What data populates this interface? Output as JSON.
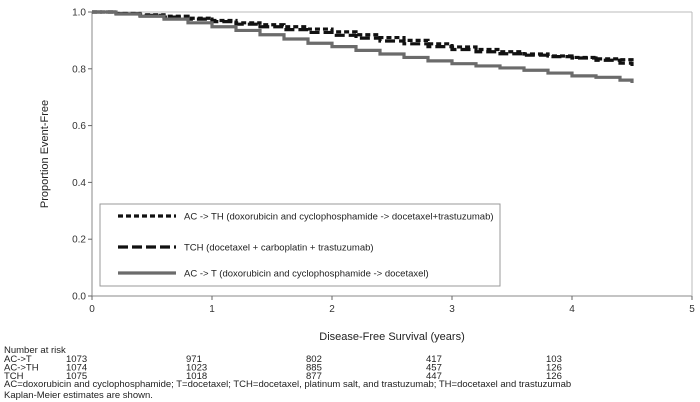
{
  "chart_data": {
    "type": "line",
    "subtype": "kaplan-meier step curves",
    "xlabel": "Disease-Free Survival (years)",
    "ylabel": "Proportion Event-Free",
    "xlim": [
      0,
      5
    ],
    "ylim": [
      0,
      1
    ],
    "x_ticks": [
      "0",
      "1",
      "2",
      "3",
      "4",
      "5"
    ],
    "y_ticks": [
      "0.0",
      "0.2",
      "0.4",
      "0.6",
      "0.8",
      "1.0"
    ],
    "grid": false,
    "legend_position": "lower-left",
    "series": [
      {
        "name": "AC -> TH (doxorubicin and cyclophosphamide -> docetaxel+trastuzumab)",
        "style": "dotted",
        "color": "#111111",
        "x": [
          0,
          0.2,
          0.4,
          0.6,
          0.8,
          1.0,
          1.2,
          1.4,
          1.6,
          1.8,
          2.0,
          2.2,
          2.4,
          2.6,
          2.8,
          3.0,
          3.2,
          3.4,
          3.6,
          3.8,
          4.0,
          4.2,
          4.4,
          4.5
        ],
        "y": [
          1.0,
          0.995,
          0.99,
          0.985,
          0.978,
          0.97,
          0.962,
          0.955,
          0.948,
          0.94,
          0.93,
          0.92,
          0.91,
          0.9,
          0.888,
          0.877,
          0.868,
          0.86,
          0.852,
          0.845,
          0.84,
          0.835,
          0.832,
          0.82
        ]
      },
      {
        "name": "TCH (docetaxel + carboplatin + trastuzumab)",
        "style": "dashed",
        "color": "#111111",
        "x": [
          0,
          0.2,
          0.4,
          0.6,
          0.8,
          1.0,
          1.2,
          1.4,
          1.6,
          1.8,
          2.0,
          2.2,
          2.4,
          2.6,
          2.8,
          3.0,
          3.2,
          3.4,
          3.6,
          3.8,
          4.0,
          4.2,
          4.4,
          4.5
        ],
        "y": [
          1.0,
          0.994,
          0.988,
          0.982,
          0.975,
          0.966,
          0.957,
          0.948,
          0.938,
          0.928,
          0.918,
          0.908,
          0.898,
          0.888,
          0.878,
          0.868,
          0.86,
          0.853,
          0.848,
          0.843,
          0.838,
          0.83,
          0.82,
          0.81
        ]
      },
      {
        "name": "AC -> T (doxorubicin and cyclophosphamide -> docetaxel)",
        "style": "solid",
        "color": "#6b6b6b",
        "x": [
          0,
          0.2,
          0.4,
          0.6,
          0.8,
          1.0,
          1.2,
          1.4,
          1.6,
          1.8,
          2.0,
          2.2,
          2.4,
          2.6,
          2.8,
          3.0,
          3.2,
          3.4,
          3.6,
          3.8,
          4.0,
          4.2,
          4.4,
          4.5
        ],
        "y": [
          1.0,
          0.993,
          0.985,
          0.975,
          0.962,
          0.948,
          0.935,
          0.92,
          0.905,
          0.89,
          0.878,
          0.865,
          0.852,
          0.84,
          0.828,
          0.818,
          0.81,
          0.803,
          0.795,
          0.785,
          0.775,
          0.77,
          0.76,
          0.75
        ]
      }
    ]
  },
  "risk_table": {
    "header": "Number at risk",
    "time_points": [
      0,
      1,
      2,
      3,
      4
    ],
    "rows": [
      {
        "label": "AC->T",
        "values": [
          "1073",
          "971",
          "802",
          "417",
          "103"
        ]
      },
      {
        "label": "AC->TH",
        "values": [
          "1074",
          "1023",
          "885",
          "457",
          "126"
        ]
      },
      {
        "label": "TCH",
        "values": [
          "1075",
          "1018",
          "877",
          "447",
          "126"
        ]
      }
    ]
  },
  "footnotes": [
    "AC=doxorubicin and cyclophosphamide; T=docetaxel; TCH=docetaxel, platinum salt, and trastuzumab; TH=docetaxel and trastuzumab",
    "Kaplan-Meier estimates are shown."
  ]
}
